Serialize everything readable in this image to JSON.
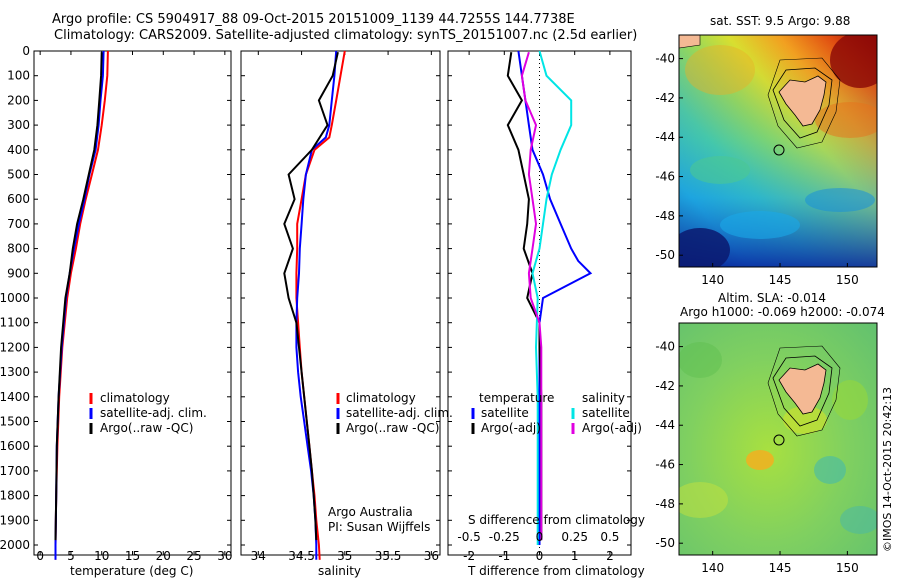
{
  "header": {
    "title_line1": "Argo profile: CS 5904917_88 09-Oct-2015 20151009_1139 44.7255S 144.7738E",
    "title_line2": "Climatology: CARS2009. Satellite-adjusted climatology: synTS_20151007.nc (2.5d earlier)"
  },
  "side_label": "©IMOS 14-Oct-2015 20:42:13",
  "panels": {
    "temperature": {
      "xlabel": "temperature (deg C)",
      "legend": [
        "climatology",
        "satellite-adj. clim.",
        "Argo(..raw -QC)"
      ]
    },
    "salinity": {
      "xlabel": "salinity",
      "legend": [
        "climatology",
        "satellite-adj. clim.",
        "Argo(..raw -QC)"
      ],
      "note1": "Argo Australia",
      "note2": "PI: Susan Wijffels"
    },
    "difference": {
      "top_label": "S difference from climatology",
      "xlabel": "T difference from climatology",
      "legend_temp_title": "temperature",
      "legend_sal_title": "salinity",
      "legend_items": [
        "satellite",
        "Argo(-adj)",
        "satellite",
        "Argo(-adj)"
      ]
    },
    "map_sst": {
      "title": "sat. SST: 9.5 Argo: 9.88"
    },
    "map_sla": {
      "title1": "Altim. SLA: -0.014",
      "title2": "Argo h1000: -0.069 h2000: -0.074"
    }
  },
  "colors": {
    "climatology": "#ff0000",
    "satellite": "#0000ff",
    "argo": "#000000",
    "sal_satellite": "#00e5e5",
    "sal_argo": "#e000e0",
    "land": "#f4b994"
  },
  "chart_data": [
    {
      "type": "line",
      "panel": "temperature",
      "xlabel": "temperature (deg C)",
      "xlim": [
        -1,
        31
      ],
      "ylim": [
        2050,
        0
      ],
      "x_ticks": [
        0,
        5,
        10,
        15,
        20,
        25,
        30
      ],
      "y_ticks": [
        0,
        100,
        200,
        300,
        400,
        500,
        600,
        700,
        800,
        900,
        1000,
        1100,
        1200,
        1300,
        1400,
        1500,
        1600,
        1700,
        1800,
        1900,
        2000
      ],
      "series": [
        {
          "name": "climatology",
          "color": "#ff0000",
          "depth": [
            0,
            100,
            200,
            300,
            400,
            500,
            600,
            700,
            800,
            900,
            1000,
            1200,
            1400,
            1600,
            1800,
            2000,
            2060
          ],
          "values": [
            11,
            10.9,
            10.5,
            10.0,
            9.4,
            8.4,
            7.4,
            6.5,
            5.8,
            5.0,
            4.4,
            3.6,
            3.1,
            2.8,
            2.6,
            2.5,
            2.5
          ]
        },
        {
          "name": "satellite-adj. clim.",
          "color": "#0000ff",
          "depth": [
            0,
            100,
            200,
            300,
            400,
            500,
            600,
            700,
            800,
            900,
            1000,
            1200,
            1400,
            1600,
            1800,
            2000,
            2060
          ],
          "values": [
            10.3,
            10.2,
            9.8,
            9.5,
            9.0,
            8.0,
            7.2,
            6.3,
            5.5,
            4.8,
            4.2,
            3.5,
            3.0,
            2.7,
            2.6,
            2.5,
            2.5
          ]
        },
        {
          "name": "Argo(..raw -QC)",
          "color": "#000000",
          "depth": [
            5,
            100,
            200,
            300,
            400,
            500,
            600,
            700,
            800,
            900,
            1000,
            1200,
            1400,
            1600,
            1800,
            1980
          ],
          "values": [
            10.0,
            9.9,
            9.6,
            9.3,
            8.8,
            7.9,
            7.0,
            6.0,
            5.3,
            4.8,
            4.1,
            3.4,
            3.0,
            2.7,
            2.6,
            2.5
          ]
        }
      ]
    },
    {
      "type": "line",
      "panel": "salinity",
      "xlabel": "salinity",
      "xlim": [
        33.8,
        36.1
      ],
      "ylim": [
        2050,
        0
      ],
      "x_ticks": [
        34,
        34.5,
        35,
        35.5,
        36
      ],
      "series": [
        {
          "name": "climatology",
          "color": "#ff0000",
          "depth": [
            0,
            100,
            200,
            300,
            350,
            400,
            500,
            600,
            700,
            800,
            900,
            1000,
            1100,
            1200,
            1300,
            1400,
            1500,
            1600,
            1700,
            1800,
            1900,
            2000,
            2060
          ],
          "values": [
            35.0,
            34.95,
            34.9,
            34.85,
            34.82,
            34.65,
            34.55,
            34.5,
            34.45,
            34.45,
            34.44,
            34.44,
            34.46,
            34.48,
            34.5,
            34.53,
            34.56,
            34.59,
            34.62,
            34.65,
            34.67,
            34.7,
            34.71
          ]
        },
        {
          "name": "satellite-adj. clim.",
          "color": "#0000ff",
          "depth": [
            0,
            100,
            200,
            300,
            350,
            400,
            500,
            600,
            700,
            800,
            900,
            1000,
            1100,
            1200,
            1300,
            1400,
            1500,
            1600,
            1700,
            1800,
            1900,
            2000,
            2060
          ],
          "values": [
            34.9,
            34.88,
            34.85,
            34.82,
            34.78,
            34.62,
            34.55,
            34.52,
            34.5,
            34.48,
            34.47,
            34.45,
            34.44,
            34.44,
            34.46,
            34.49,
            34.53,
            34.57,
            34.61,
            34.64,
            34.66,
            34.67,
            34.67
          ]
        },
        {
          "name": "Argo(..raw -QC)",
          "color": "#000000",
          "depth": [
            5,
            100,
            200,
            300,
            400,
            500,
            600,
            700,
            800,
            900,
            1000,
            1100,
            1200,
            1300,
            1400,
            1500,
            1600,
            1700,
            1800,
            1900,
            1980
          ],
          "values": [
            34.92,
            34.86,
            34.7,
            34.8,
            34.62,
            34.35,
            34.42,
            34.3,
            34.4,
            34.3,
            34.35,
            34.44,
            34.47,
            34.5,
            34.53,
            34.56,
            34.59,
            34.62,
            34.64,
            34.66,
            34.67
          ]
        }
      ]
    },
    {
      "type": "line",
      "panel": "difference",
      "xlabel": "T difference from climatology",
      "top_label": "S difference from climatology",
      "xlim": [
        -2.6,
        2.6
      ],
      "ylim": [
        2050,
        0
      ],
      "x_ticks": [
        -2,
        -1,
        0,
        1,
        2
      ],
      "x_ticks_top": [
        "-0.5",
        "-0.25",
        "0",
        "0.25",
        "0.5"
      ],
      "series": [
        {
          "name": "temperature satellite",
          "color": "#0000ff",
          "depth": [
            0,
            100,
            200,
            300,
            400,
            500,
            600,
            700,
            800,
            850,
            900,
            1000,
            1100,
            1200,
            1300,
            1400,
            1500,
            1600,
            1800,
            2000
          ],
          "values": [
            -0.6,
            -0.5,
            -0.4,
            -0.3,
            -0.2,
            0.1,
            0.3,
            0.6,
            0.9,
            1.1,
            1.45,
            0.1,
            0.0,
            0.0,
            0.0,
            0.0,
            0.0,
            0.0,
            0.0,
            0.0
          ]
        },
        {
          "name": "temperature Argo(-adj)",
          "color": "#000000",
          "depth": [
            5,
            100,
            200,
            300,
            400,
            500,
            600,
            700,
            800,
            900,
            1000,
            1100,
            1200,
            1400,
            1600,
            1800,
            1980
          ],
          "values": [
            -0.8,
            -0.9,
            -0.5,
            -0.9,
            -0.6,
            -0.45,
            -0.3,
            -0.35,
            -0.45,
            -0.2,
            -0.35,
            0.0,
            0.0,
            0.05,
            0.05,
            0.05,
            0.05
          ]
        },
        {
          "name": "salinity satellite",
          "color": "#00e5e5",
          "depth": [
            0,
            100,
            200,
            300,
            400,
            500,
            600,
            700,
            800,
            900,
            1000,
            1200,
            1400,
            1600,
            1800,
            2000
          ],
          "values": [
            0.0,
            0.2,
            0.9,
            0.9,
            0.6,
            0.35,
            0.2,
            0.1,
            0.0,
            -0.2,
            -0.05,
            -0.1,
            -0.05,
            -0.05,
            -0.05,
            -0.05
          ]
        },
        {
          "name": "salinity Argo(-adj)",
          "color": "#e000e0",
          "depth": [
            5,
            100,
            200,
            300,
            400,
            500,
            600,
            700,
            800,
            900,
            1000,
            1100,
            1200,
            1400,
            1600,
            1800,
            1980
          ],
          "values": [
            -0.3,
            -0.5,
            -0.4,
            -0.1,
            -0.25,
            -0.3,
            -0.2,
            -0.1,
            -0.2,
            -0.3,
            -0.25,
            0.0,
            0.05,
            0.05,
            0.05,
            0.05,
            0.05
          ]
        }
      ]
    },
    {
      "type": "heatmap",
      "panel": "map_sst",
      "title": "sat. SST: 9.5 Argo: 9.88",
      "xlim": [
        137.5,
        152.2
      ],
      "ylim": [
        -50.6,
        -38.8
      ],
      "x_ticks": [
        140,
        145,
        150
      ],
      "y_ticks": [
        -40,
        -42,
        -44,
        -46,
        -48,
        -50
      ],
      "argo_position": [
        144.77,
        -44.73
      ]
    },
    {
      "type": "heatmap",
      "panel": "map_sla",
      "title": "Altim. SLA: -0.014",
      "xlim": [
        137.5,
        152.2
      ],
      "ylim": [
        -50.6,
        -38.8
      ],
      "x_ticks": [
        140,
        145,
        150
      ],
      "y_ticks": [
        -40,
        -42,
        -44,
        -46,
        -48,
        -50
      ],
      "argo_position": [
        144.77,
        -44.73
      ]
    }
  ]
}
